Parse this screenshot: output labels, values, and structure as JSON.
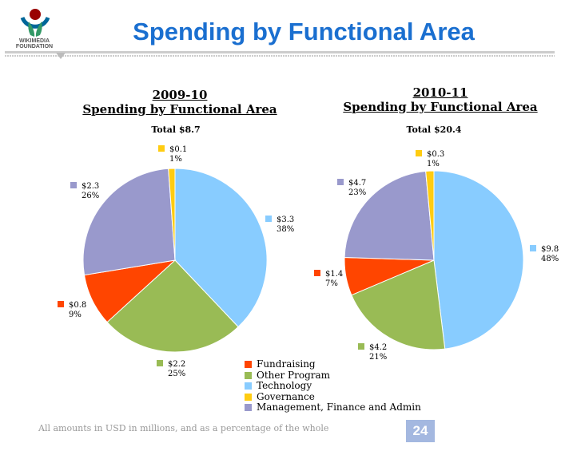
{
  "header": {
    "title": "Spending by Functional Area",
    "logo_text": [
      "WIKIMEDIA",
      "FOUNDATION"
    ]
  },
  "colors": {
    "Fundraising": "#ff4500",
    "Other Program": "#99bb55",
    "Technology": "#88ccff",
    "Governance": "#ffcc11",
    "Management, Finance and Admin": "#9999cc"
  },
  "chart_data": [
    {
      "type": "pie",
      "title_line1": "2009-10",
      "title_line2": "Spending by Functional Area",
      "total_label": "Total  $8.7",
      "slices": [
        {
          "name": "Technology",
          "value": 3.3,
          "value_label": "$3.3",
          "pct_label": "38%"
        },
        {
          "name": "Other Program",
          "value": 2.2,
          "value_label": "$2.2",
          "pct_label": "25%"
        },
        {
          "name": "Fundraising",
          "value": 0.8,
          "value_label": "$0.8",
          "pct_label": "9%"
        },
        {
          "name": "Management, Finance and Admin",
          "value": 2.3,
          "value_label": "$2.3",
          "pct_label": "26%"
        },
        {
          "name": "Governance",
          "value": 0.1,
          "value_label": "$0.1",
          "pct_label": "1%"
        }
      ]
    },
    {
      "type": "pie",
      "title_line1": "2010-11",
      "title_line2": "Spending by Functional Area",
      "total_label": "Total  $20.4",
      "slices": [
        {
          "name": "Technology",
          "value": 9.8,
          "value_label": "$9.8",
          "pct_label": "48%"
        },
        {
          "name": "Other Program",
          "value": 4.2,
          "value_label": "$4.2",
          "pct_label": "21%"
        },
        {
          "name": "Fundraising",
          "value": 1.4,
          "value_label": "$1.4",
          "pct_label": "7%"
        },
        {
          "name": "Management, Finance and Admin",
          "value": 4.7,
          "value_label": "$4.7",
          "pct_label": "23%"
        },
        {
          "name": "Governance",
          "value": 0.3,
          "value_label": "$0.3",
          "pct_label": "1%"
        }
      ]
    }
  ],
  "legend": [
    "Fundraising",
    "Other Program",
    "Technology",
    "Governance",
    "Management, Finance and Admin"
  ],
  "footer": {
    "note": "All amounts in USD in millions, and as a percentage of the whole",
    "page": "24"
  }
}
